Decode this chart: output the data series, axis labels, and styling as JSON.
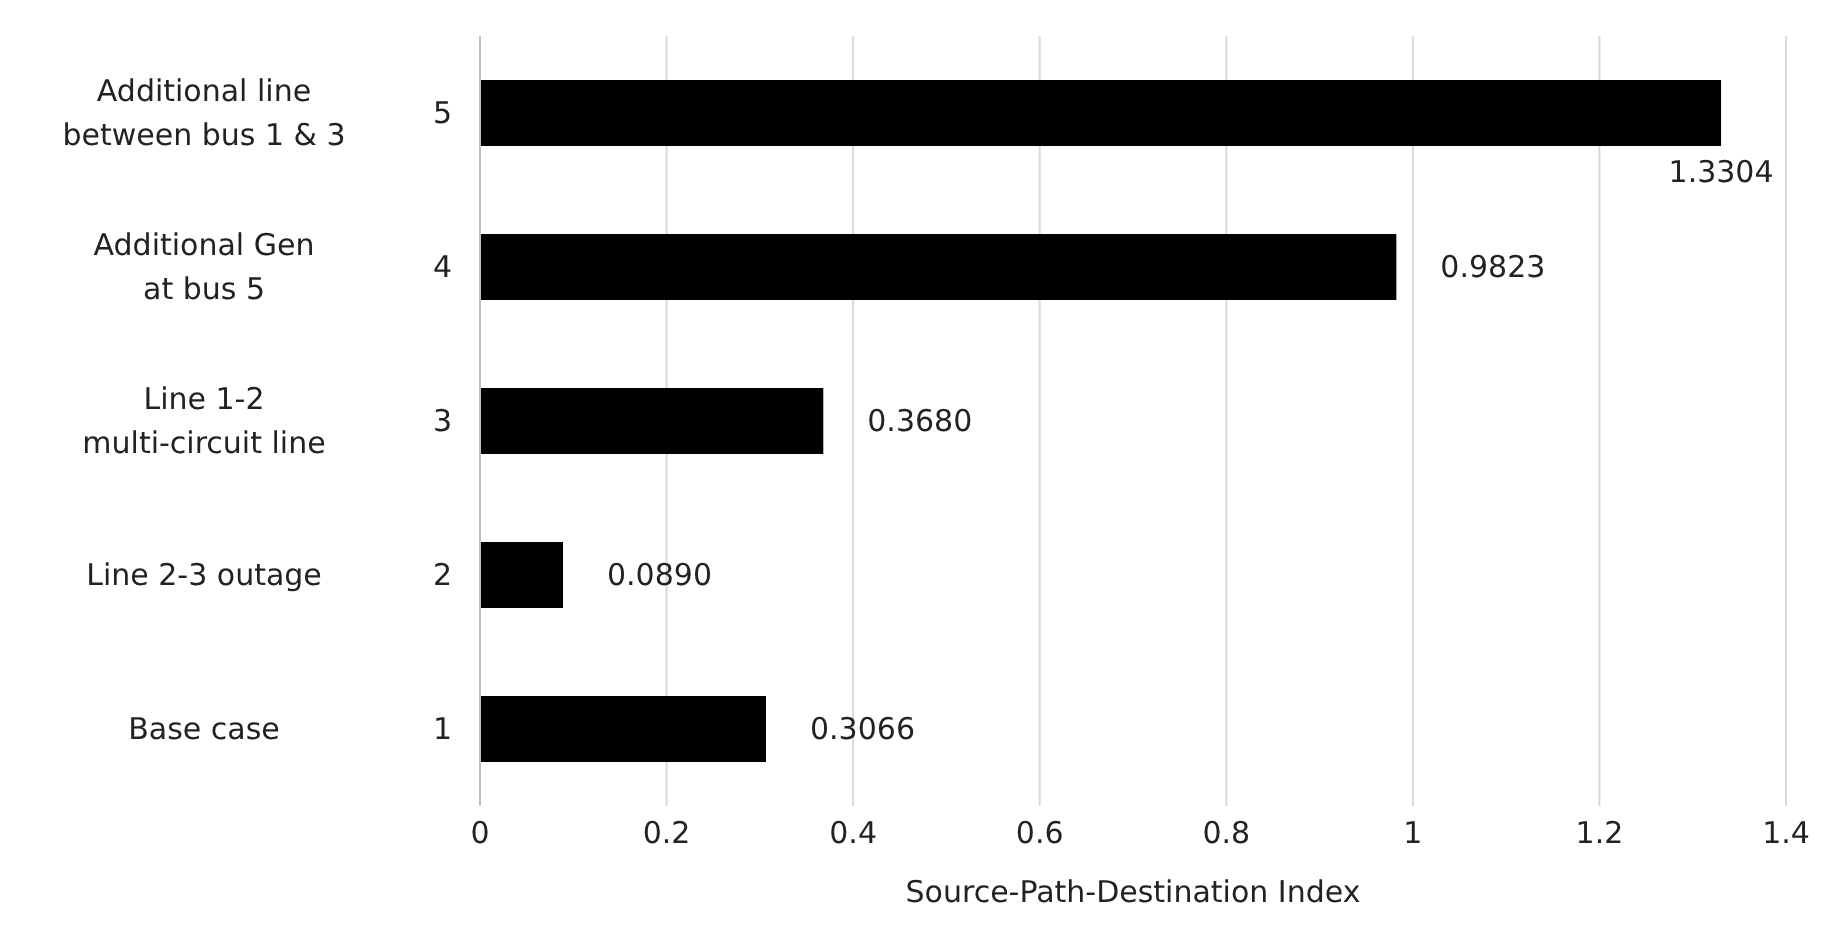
{
  "chart_data": {
    "type": "bar",
    "orientation": "horizontal",
    "xlabel": "Source-Path-Destination Index",
    "categories": [
      "5",
      "4",
      "3",
      "2",
      "1"
    ],
    "values": [
      1.3304,
      0.9823,
      0.368,
      0.089,
      0.3066
    ],
    "value_labels": [
      "1.3304",
      "0.9823",
      "0.3680",
      "0.0890",
      "0.3066"
    ],
    "color": "#000000",
    "xlim": [
      0,
      1.4
    ],
    "xticks": [
      0,
      0.2,
      0.4,
      0.6,
      0.8,
      1,
      1.2,
      1.4
    ],
    "grid": "x",
    "annotations": [
      "Additional line\nbetween bus 1 & 3",
      "Additional Gen\nat bus 5",
      "Line 1-2\nmulti-circuit line",
      "Line 2-3 outage",
      "Base case"
    ]
  }
}
